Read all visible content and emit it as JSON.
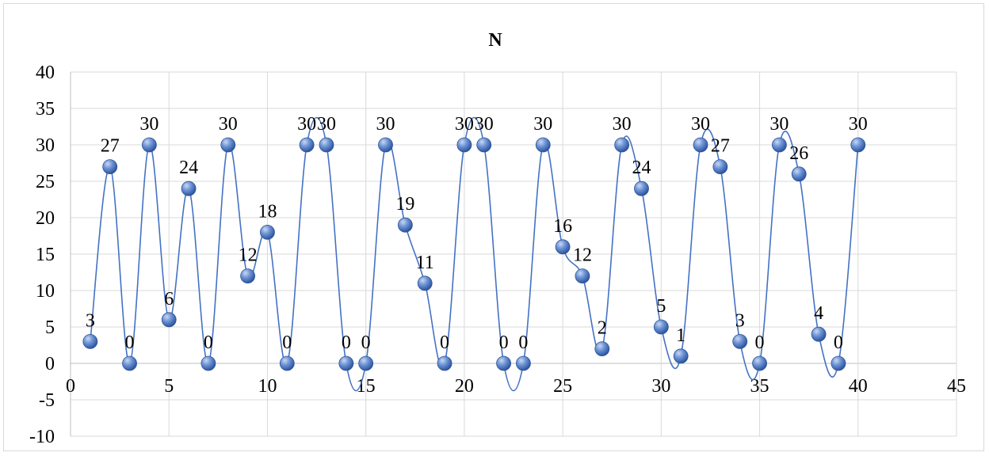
{
  "chart_data": {
    "type": "scatter",
    "title": "N",
    "xlabel": "",
    "ylabel": "",
    "xlim": [
      0,
      45
    ],
    "ylim": [
      -10,
      40
    ],
    "x_ticks": [
      "0",
      "5",
      "10",
      "15",
      "20",
      "25",
      "30",
      "35",
      "40",
      "45"
    ],
    "y_ticks": [
      "40",
      "35",
      "30",
      "25",
      "20",
      "15",
      "10",
      "5",
      "0",
      "-5",
      "-10"
    ],
    "grid": true,
    "legend": "none",
    "line_style": "smoothed",
    "series_color": "#4472c4",
    "series": [
      {
        "x": [
          1,
          2,
          3,
          4,
          5,
          6,
          7,
          8,
          9,
          10,
          11,
          12,
          13,
          14,
          15,
          16,
          17,
          18,
          19,
          20,
          21,
          22,
          23,
          24,
          25,
          26,
          27,
          28,
          29,
          30,
          31,
          32,
          33,
          34,
          35,
          36,
          37,
          38,
          39,
          40
        ],
        "values": [
          3,
          27,
          0,
          30,
          6,
          24,
          0,
          30,
          12,
          18,
          0,
          30,
          30,
          0,
          0,
          30,
          19,
          11,
          0,
          30,
          30,
          0,
          0,
          30,
          16,
          12,
          2,
          30,
          24,
          5,
          1,
          30,
          27,
          3,
          0,
          30,
          26,
          4,
          0,
          30
        ],
        "labels": [
          "3",
          "27",
          "0",
          "30",
          "6",
          "24",
          "0",
          "30",
          "12",
          "18",
          "0",
          "30",
          "30",
          "0",
          "0",
          "30",
          "19",
          "11",
          "0",
          "30",
          "30",
          "0",
          "0",
          "30",
          "16",
          "12",
          "2",
          "30",
          "24",
          "5",
          "1",
          "30",
          "27",
          "3",
          "0",
          "30",
          "26",
          "4",
          "0",
          "30"
        ]
      }
    ]
  }
}
